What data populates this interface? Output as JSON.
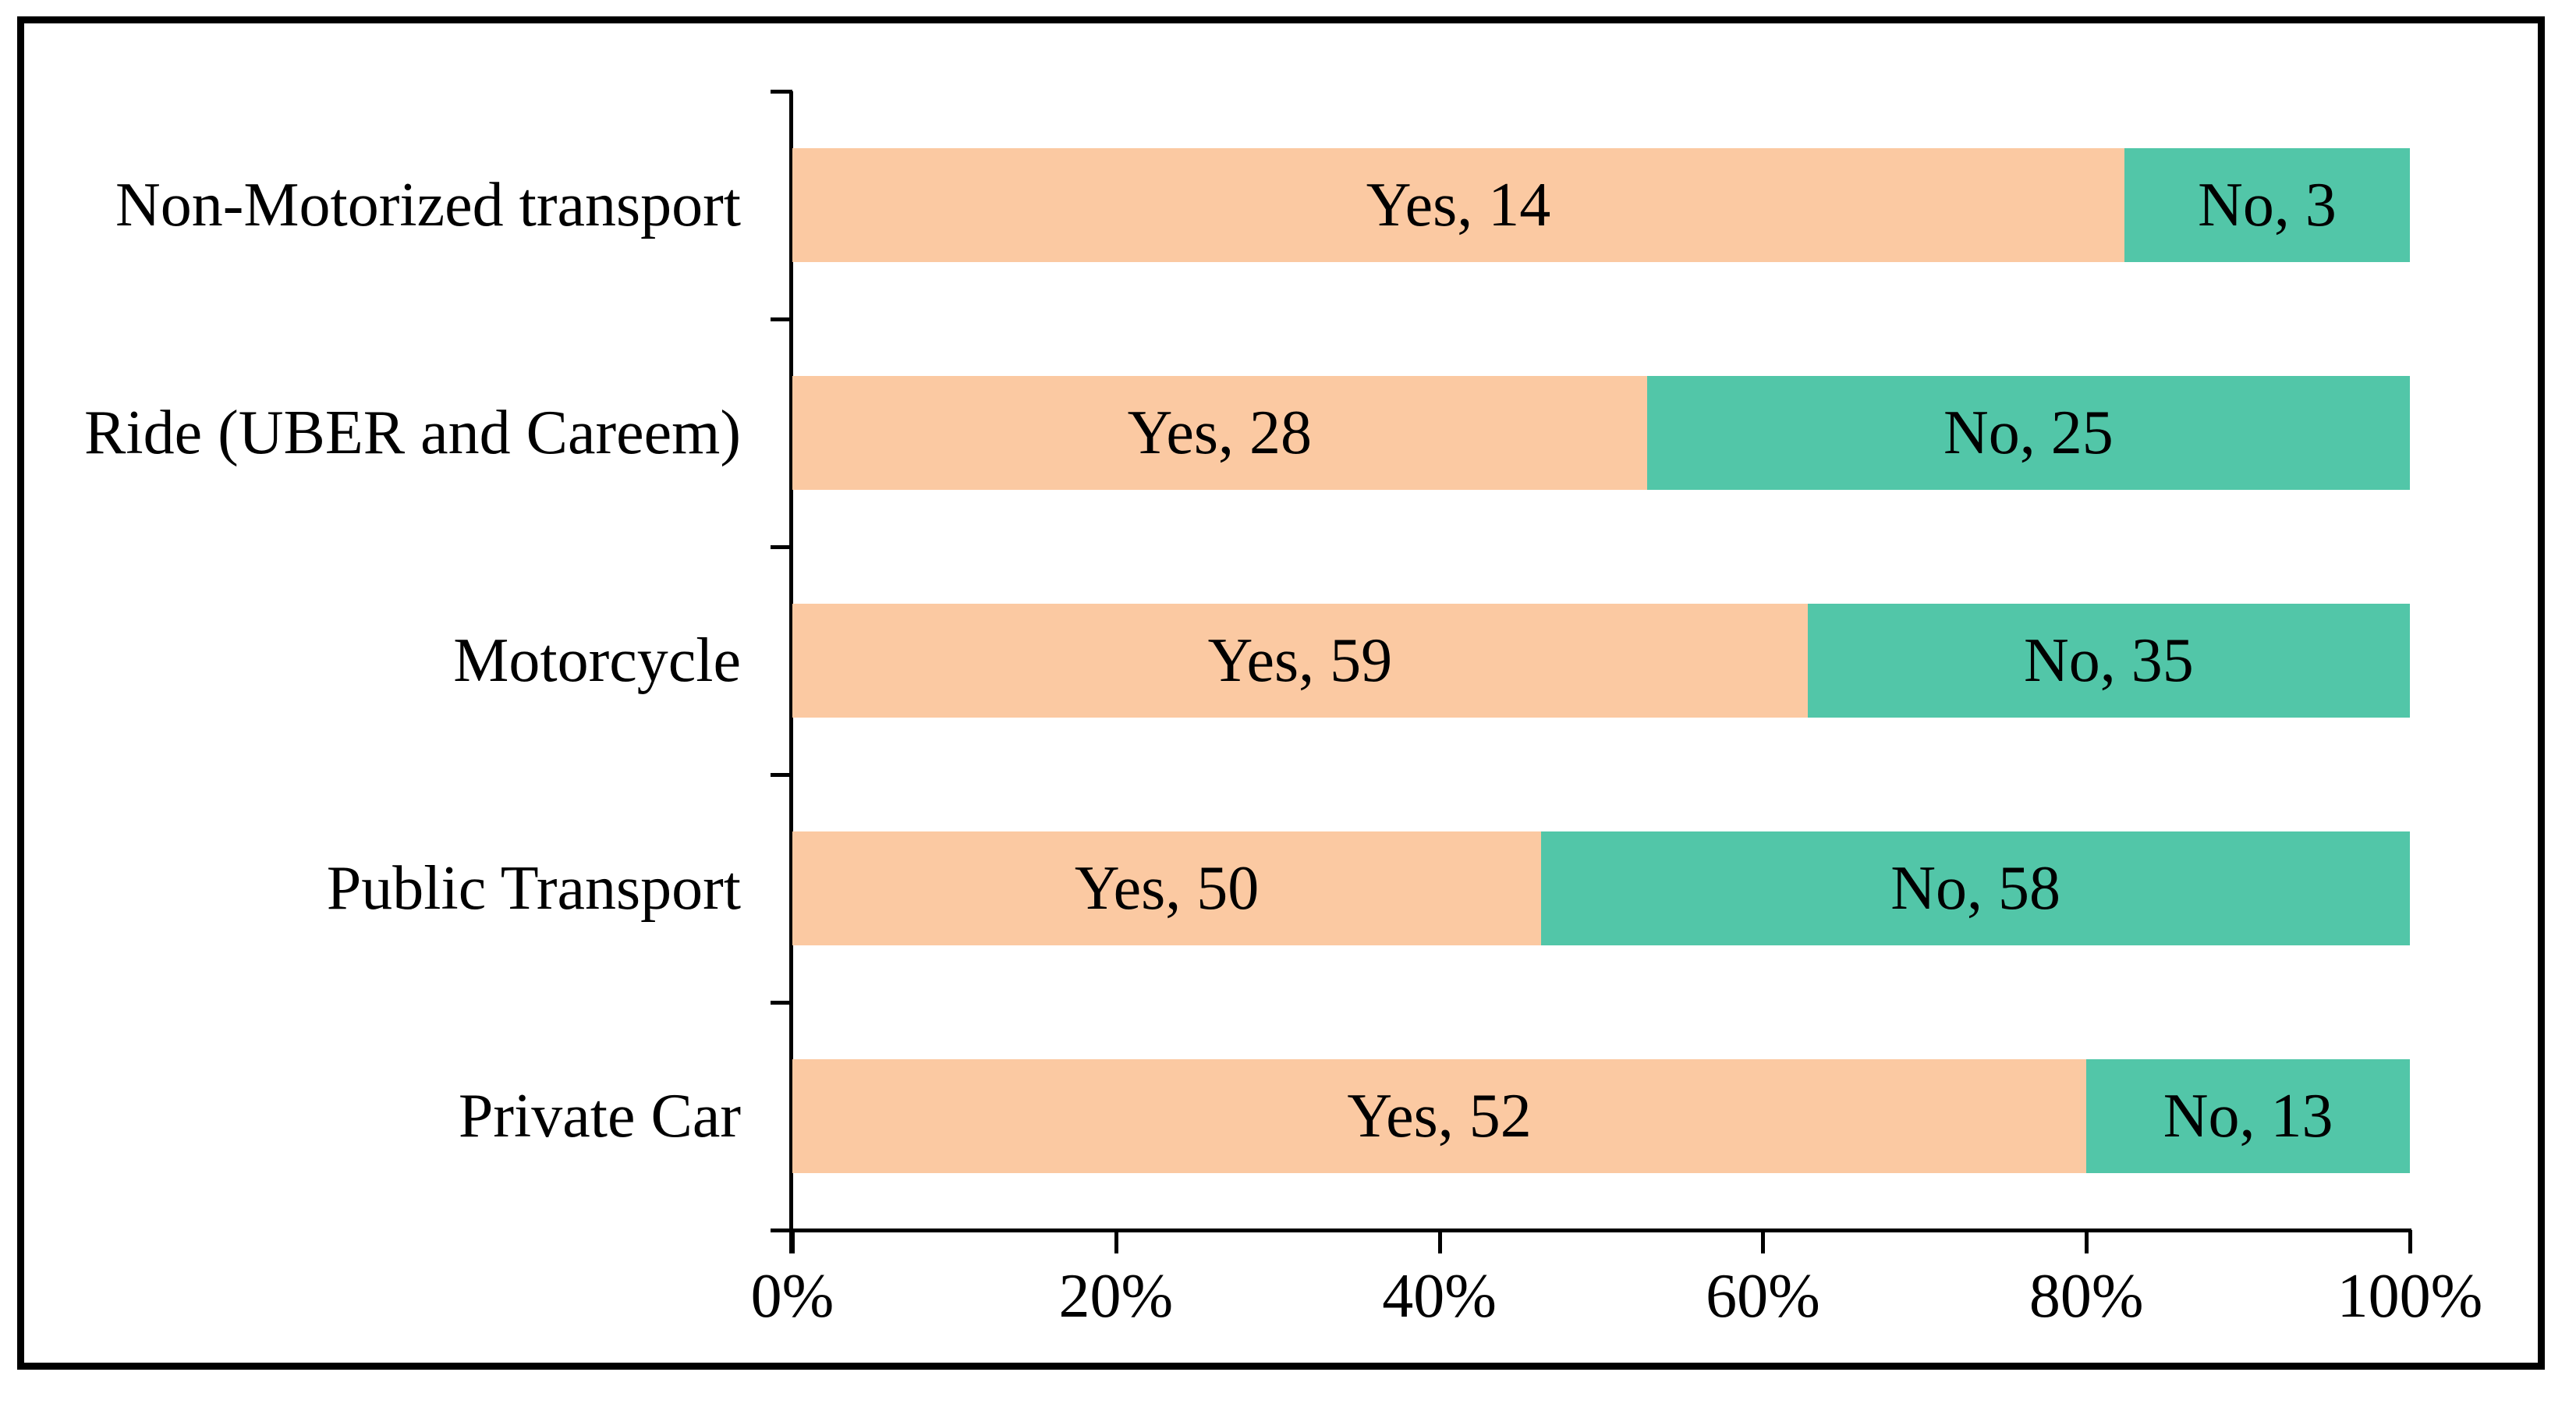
{
  "chart_data": {
    "type": "bar",
    "orientation": "horizontal",
    "stacked": true,
    "normalized_to_100_percent": true,
    "title": "",
    "xlabel": "",
    "ylabel": "",
    "grid": false,
    "legend_position": "none",
    "categories": [
      "Non-Motorized transport",
      "Ride (UBER and Careem)",
      "Motorcycle",
      "Public Transport",
      "Private Car"
    ],
    "series": [
      {
        "name": "Yes",
        "color": "#FBC9A2",
        "values": [
          14,
          28,
          59,
          50,
          52
        ]
      },
      {
        "name": "No",
        "color": "#52C6A8",
        "values": [
          3,
          25,
          35,
          58,
          13
        ]
      }
    ],
    "bar_labels": [
      [
        "Yes, 14",
        "No, 3"
      ],
      [
        "Yes, 28",
        "No, 25"
      ],
      [
        "Yes, 59",
        "No, 35"
      ],
      [
        "Yes, 50",
        "No, 58"
      ],
      [
        "Yes, 52",
        "No, 13"
      ]
    ],
    "x_axis": {
      "tick_labels": [
        "0%",
        "20%",
        "40%",
        "60%",
        "80%",
        "100%"
      ],
      "min": 0,
      "max": 100
    },
    "colors": {
      "frame": "#000000",
      "axis": "#000000",
      "text": "#000000",
      "background": "#ffffff"
    }
  }
}
